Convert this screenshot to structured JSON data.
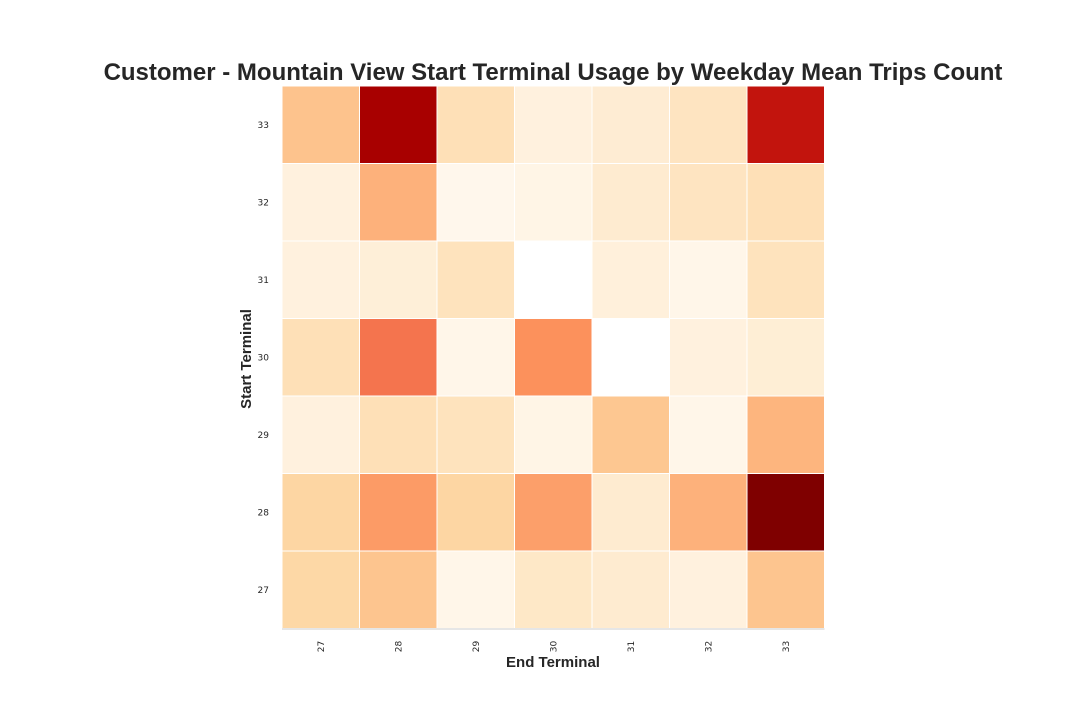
{
  "chart_data": {
    "type": "heatmap",
    "title": "Customer - Mountain View Start Terminal Usage by Weekday Mean Trips Count",
    "xlabel": "End Terminal",
    "ylabel": "Start Terminal",
    "x_categories": [
      "27",
      "28",
      "29",
      "30",
      "31",
      "32",
      "33"
    ],
    "y_categories": [
      "33",
      "32",
      "31",
      "30",
      "29",
      "28",
      "27"
    ],
    "values": [
      [
        4.2,
        10.0,
        2.6,
        1.3,
        1.7,
        2.3,
        9.2
      ],
      [
        1.3,
        4.9,
        0.8,
        1.0,
        1.8,
        2.3,
        2.6
      ],
      [
        1.3,
        1.5,
        2.4,
        null,
        1.4,
        0.9,
        2.4
      ],
      [
        2.6,
        6.7,
        0.9,
        5.8,
        null,
        1.3,
        1.6
      ],
      [
        1.3,
        2.6,
        2.4,
        1.0,
        4.0,
        0.9,
        4.8
      ],
      [
        3.2,
        5.5,
        3.2,
        5.4,
        1.8,
        4.9,
        11.0
      ],
      [
        3.1,
        4.1,
        0.9,
        2.1,
        1.8,
        1.3,
        4.1
      ]
    ],
    "colormap": "OrRd",
    "missing_color": "#ffffff",
    "grid": false,
    "legend": "none"
  }
}
